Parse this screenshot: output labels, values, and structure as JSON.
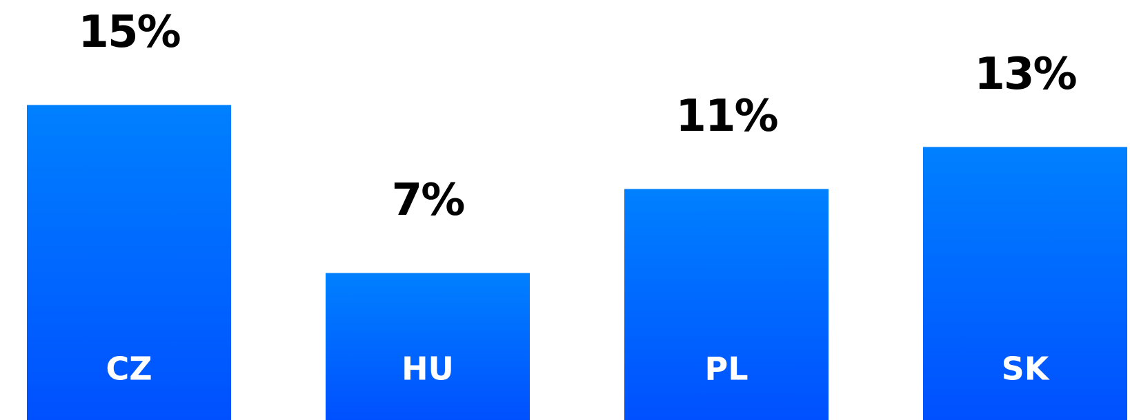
{
  "chart_data": {
    "type": "bar",
    "categories": [
      "CZ",
      "HU",
      "PL",
      "SK"
    ],
    "values": [
      15,
      7,
      11,
      13
    ],
    "value_labels": [
      "15%",
      "7%",
      "11%",
      "13%"
    ],
    "colors": [
      "#0080ff",
      "#0050ff"
    ],
    "ylim": [
      0,
      20
    ]
  }
}
